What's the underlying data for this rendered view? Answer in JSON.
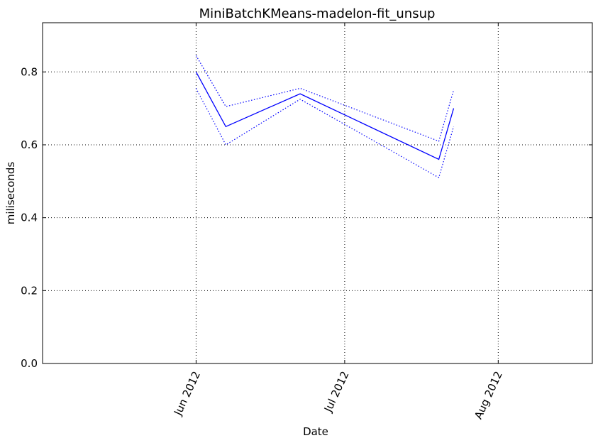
{
  "chart_data": {
    "type": "line",
    "title": "MiniBatchKMeans-madelon-fit_unsup",
    "xlabel": "Date",
    "ylabel": "miliseconds",
    "x_ticks": [
      "2012-06-01",
      "2012-07-01",
      "2012-08-01"
    ],
    "x_tick_labels": [
      "Jun 2012",
      "Jul 2012",
      "Aug 2012"
    ],
    "xlim": [
      "2012-05-01",
      "2012-08-20"
    ],
    "y_ticks": [
      0.0,
      0.2,
      0.4,
      0.6,
      0.8
    ],
    "y_tick_labels": [
      "0.0",
      "0.2",
      "0.4",
      "0.6",
      "0.8"
    ],
    "ylim": [
      0.0,
      0.935
    ],
    "grid": true,
    "series": [
      {
        "role": "mean",
        "style": "solid",
        "color": "#0000ff",
        "x": [
          "2012-06-01",
          "2012-06-07",
          "2012-06-22",
          "2012-07-20",
          "2012-07-23"
        ],
        "y": [
          0.8,
          0.65,
          0.74,
          0.56,
          0.7
        ]
      },
      {
        "role": "upper",
        "style": "dotted",
        "color": "#0000ff",
        "x": [
          "2012-06-01",
          "2012-06-07",
          "2012-06-22",
          "2012-07-20",
          "2012-07-23"
        ],
        "y": [
          0.845,
          0.705,
          0.755,
          0.61,
          0.75
        ]
      },
      {
        "role": "lower",
        "style": "dotted",
        "color": "#0000ff",
        "x": [
          "2012-06-01",
          "2012-06-07",
          "2012-06-22",
          "2012-07-20",
          "2012-07-23"
        ],
        "y": [
          0.755,
          0.6,
          0.725,
          0.51,
          0.65
        ]
      }
    ]
  }
}
